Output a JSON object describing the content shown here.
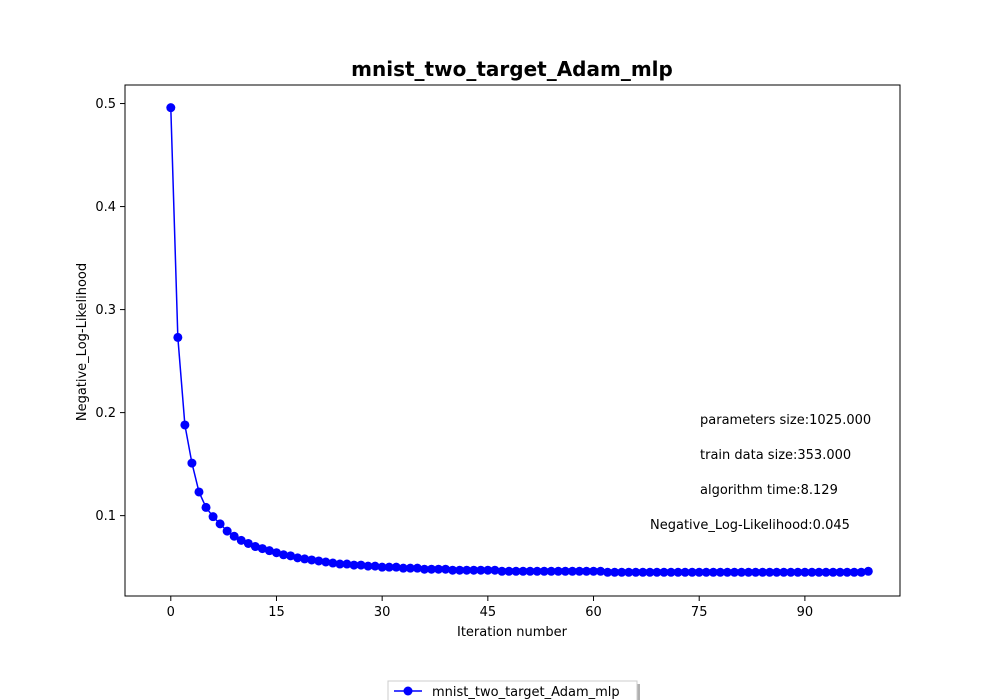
{
  "chart_data": {
    "type": "line",
    "title": "mnist_two_target_Adam_mlp",
    "xlabel": "Iteration number",
    "ylabel": "Negative_Log-Likelihood",
    "xlim": [
      -6.5,
      103.5
    ],
    "ylim": [
      0.022,
      0.518
    ],
    "xticks": [
      0,
      15,
      30,
      45,
      60,
      75,
      90
    ],
    "yticks": [
      0.1,
      0.2,
      0.3,
      0.4,
      0.5
    ],
    "ytick_labels": [
      "0.1",
      "0.2",
      "0.3",
      "0.4",
      "0.5"
    ],
    "grid": false,
    "legend_position": "below",
    "series": [
      {
        "name": "mnist_two_target_Adam_mlp",
        "color": "#0000ff",
        "marker": "circle",
        "x": [
          0,
          1,
          2,
          3,
          4,
          5,
          6,
          7,
          8,
          9,
          10,
          11,
          12,
          13,
          14,
          15,
          16,
          17,
          18,
          19,
          20,
          21,
          22,
          23,
          24,
          25,
          26,
          27,
          28,
          29,
          30,
          31,
          32,
          33,
          34,
          35,
          36,
          37,
          38,
          39,
          40,
          41,
          42,
          43,
          44,
          45,
          46,
          47,
          48,
          49,
          50,
          51,
          52,
          53,
          54,
          55,
          56,
          57,
          58,
          59,
          60,
          61,
          62,
          63,
          64,
          65,
          66,
          67,
          68,
          69,
          70,
          71,
          72,
          73,
          74,
          75,
          76,
          77,
          78,
          79,
          80,
          81,
          82,
          83,
          84,
          85,
          86,
          87,
          88,
          89,
          90,
          91,
          92,
          93,
          94,
          95,
          96,
          97,
          98,
          99
        ],
        "y": [
          0.496,
          0.273,
          0.188,
          0.151,
          0.123,
          0.108,
          0.099,
          0.092,
          0.085,
          0.08,
          0.076,
          0.073,
          0.07,
          0.068,
          0.066,
          0.064,
          0.062,
          0.061,
          0.059,
          0.058,
          0.057,
          0.056,
          0.055,
          0.054,
          0.053,
          0.053,
          0.052,
          0.052,
          0.051,
          0.051,
          0.05,
          0.05,
          0.05,
          0.049,
          0.049,
          0.049,
          0.048,
          0.048,
          0.048,
          0.048,
          0.047,
          0.047,
          0.047,
          0.047,
          0.047,
          0.047,
          0.047,
          0.046,
          0.046,
          0.046,
          0.046,
          0.046,
          0.046,
          0.046,
          0.046,
          0.046,
          0.046,
          0.046,
          0.046,
          0.046,
          0.046,
          0.046,
          0.045,
          0.045,
          0.045,
          0.045,
          0.045,
          0.045,
          0.045,
          0.045,
          0.045,
          0.045,
          0.045,
          0.045,
          0.045,
          0.045,
          0.045,
          0.045,
          0.045,
          0.045,
          0.045,
          0.045,
          0.045,
          0.045,
          0.045,
          0.045,
          0.045,
          0.045,
          0.045,
          0.045,
          0.045,
          0.045,
          0.045,
          0.045,
          0.045,
          0.045,
          0.045,
          0.045,
          0.045,
          0.046
        ]
      }
    ],
    "annotations": [
      "parameters size:1025.000",
      "train data size:353.000",
      "algorithm time:8.129",
      "Negative_Log-Likelihood:0.045"
    ]
  }
}
